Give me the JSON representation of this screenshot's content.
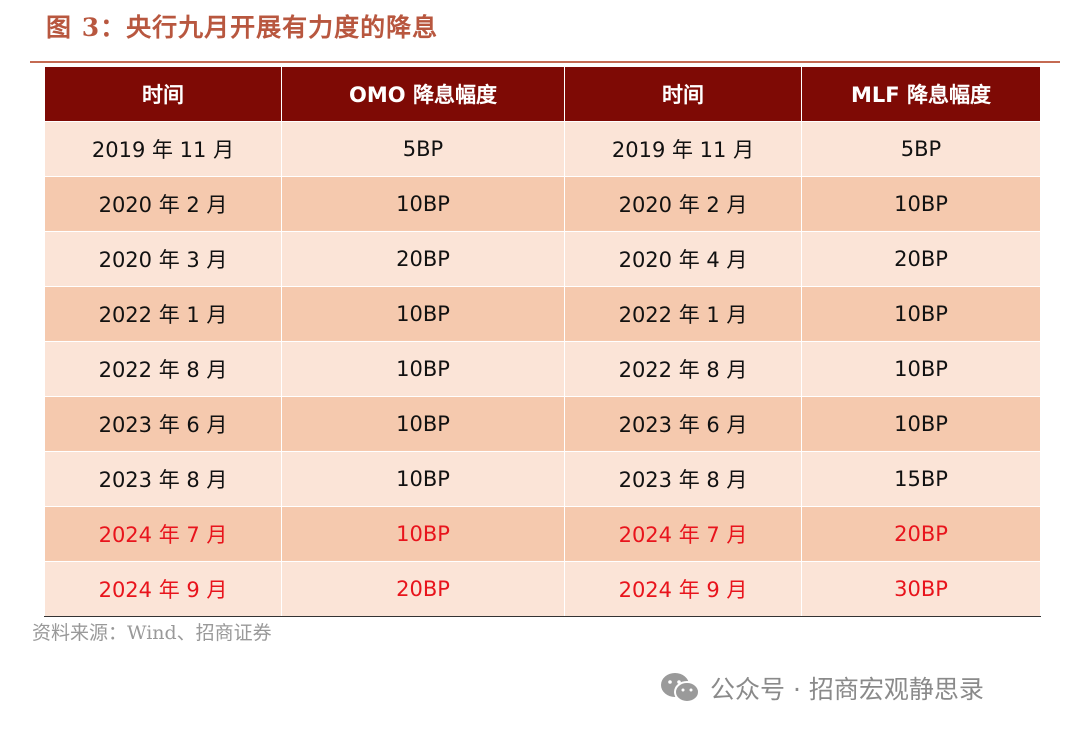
{
  "header": {
    "title": "图 3：央行九月开展有力度的降息"
  },
  "table": {
    "columns": [
      "时间",
      "OMO 降息幅度",
      "时间",
      "MLF 降息幅度"
    ],
    "rows": [
      {
        "cells": [
          "2019 年 11 月",
          "5BP",
          "2019 年 11 月",
          "5BP"
        ],
        "color": "#111111"
      },
      {
        "cells": [
          "2020 年 2 月",
          "10BP",
          "2020 年 2 月",
          "10BP"
        ],
        "color": "#111111"
      },
      {
        "cells": [
          "2020 年 3 月",
          "20BP",
          "2020 年 4 月",
          "20BP"
        ],
        "color": "#111111"
      },
      {
        "cells": [
          "2022 年 1 月",
          "10BP",
          "2022 年 1 月",
          "10BP"
        ],
        "color": "#111111"
      },
      {
        "cells": [
          "2022 年 8 月",
          "10BP",
          "2022 年 8 月",
          "10BP"
        ],
        "color": "#111111"
      },
      {
        "cells": [
          "2023 年 6 月",
          "10BP",
          "2023 年 6 月",
          "10BP"
        ],
        "color": "#111111"
      },
      {
        "cells": [
          "2023 年 8 月",
          "10BP",
          "2023 年 8 月",
          "15BP"
        ],
        "color": "#111111"
      },
      {
        "cells": [
          "2024 年 7 月",
          "10BP",
          "2024 年 7 月",
          "20BP"
        ],
        "color": "#e8141c"
      },
      {
        "cells": [
          "2024 年 9 月",
          "20BP",
          "2024 年 9 月",
          "30BP"
        ],
        "color": "#e8141c"
      }
    ]
  },
  "footer": {
    "source": "资料来源：Wind、招商证券",
    "watermark": "公众号 · 招商宏观静思录"
  }
}
